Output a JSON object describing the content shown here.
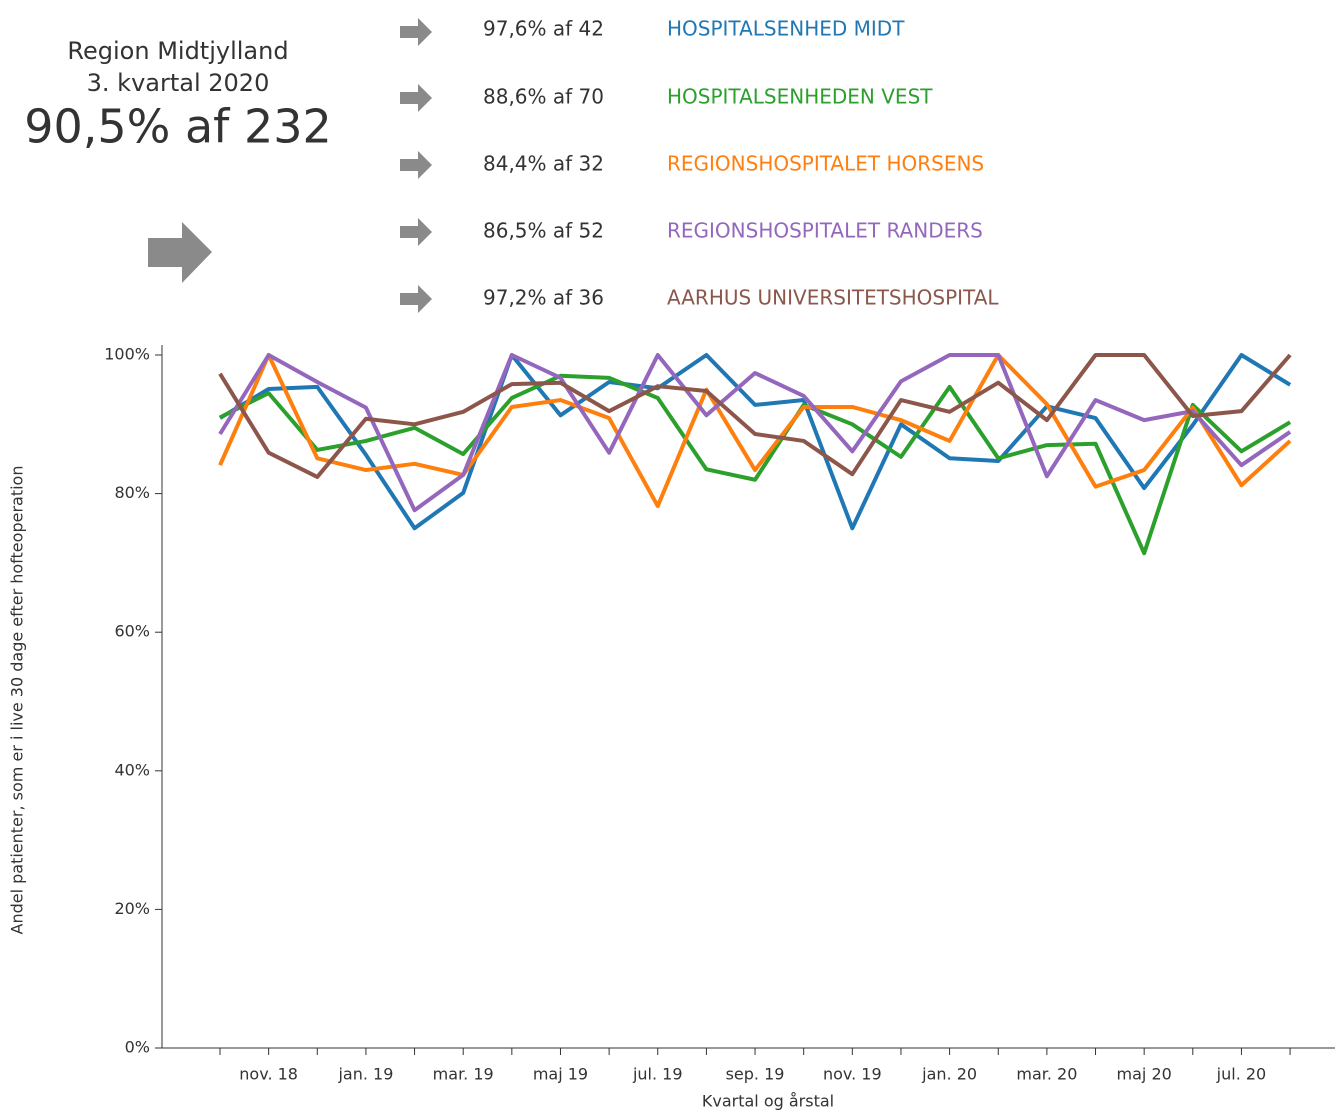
{
  "header": {
    "region": "Region Midtjylland",
    "period": "3. kvartal 2020",
    "summary": "90,5% af 232",
    "rows": [
      "97,6% af 42",
      "88,6% af 70",
      "84,4% af 32",
      "86,5% af 52",
      "97,2% af 36"
    ]
  },
  "chart_data": {
    "type": "line",
    "x_label": "Kvartal og årstal",
    "y_label": "Andel patienter, som er i live 30 dage efter hofteoperation",
    "categories": [
      null,
      "nov. 18",
      null,
      "jan. 19",
      null,
      "mar. 19",
      null,
      "maj 19",
      null,
      "jul. 19",
      null,
      "sep. 19",
      null,
      "nov. 19",
      null,
      "jan. 20",
      null,
      "mar. 20",
      null,
      "maj 20",
      null,
      "jul. 20",
      null
    ],
    "ylim": [
      0,
      100
    ],
    "yticks": [
      {
        "value": 0,
        "label": "0%"
      },
      {
        "value": 20,
        "label": "20%"
      },
      {
        "value": 40,
        "label": "40%"
      },
      {
        "value": 60,
        "label": "60%"
      },
      {
        "value": 80,
        "label": "80%"
      },
      {
        "value": 100,
        "label": "100%"
      }
    ],
    "series": [
      {
        "name": "HOSPITALSENHED MIDT",
        "color": "#1f77b4",
        "values": [
          90.9,
          95.1,
          95.4,
          85.6,
          75.0,
          80.1,
          100,
          91.3,
          96.1,
          95.2,
          100,
          92.8,
          93.5,
          75.0,
          90.0,
          85.1,
          84.7,
          92.6,
          90.9,
          80.8,
          89.9,
          100,
          95.7
        ]
      },
      {
        "name": "HOSPITALSENHEDEN VEST",
        "color": "#2ca02c",
        "values": [
          91.0,
          94.5,
          86.3,
          87.6,
          89.5,
          85.7,
          93.8,
          97.0,
          96.7,
          93.8,
          83.5,
          82.0,
          92.8,
          90.0,
          85.3,
          95.4,
          85.1,
          87.0,
          87.2,
          71.4,
          92.8,
          86.1,
          90.3
        ]
      },
      {
        "name": "REGIONSHOSPITALET HORSENS",
        "color": "#ff7f0e",
        "values": [
          84.1,
          100,
          85.1,
          83.4,
          84.3,
          82.7,
          92.5,
          93.5,
          90.9,
          78.2,
          95.0,
          83.4,
          92.5,
          92.5,
          90.6,
          87.6,
          100,
          92.9,
          81.0,
          83.4,
          92.4,
          81.2,
          87.6
        ]
      },
      {
        "name": "REGIONSHOSPITALET RANDERS",
        "color": "#9467bd",
        "values": [
          88.6,
          100,
          96.1,
          92.4,
          77.6,
          82.7,
          100,
          96.7,
          85.9,
          100,
          91.3,
          97.4,
          94.1,
          86.1,
          96.2,
          100,
          100,
          82.5,
          93.5,
          90.6,
          91.9,
          84.1,
          88.9
        ]
      },
      {
        "name": "AARHUS UNIVERSITETSHOSPITAL",
        "color": "#8c564b",
        "values": [
          97.3,
          85.9,
          82.4,
          90.8,
          90.0,
          91.8,
          95.8,
          96.0,
          91.9,
          95.5,
          94.8,
          88.6,
          87.6,
          82.8,
          93.5,
          91.8,
          96.0,
          90.6,
          100,
          100,
          91.2,
          91.9,
          100
        ]
      }
    ]
  }
}
